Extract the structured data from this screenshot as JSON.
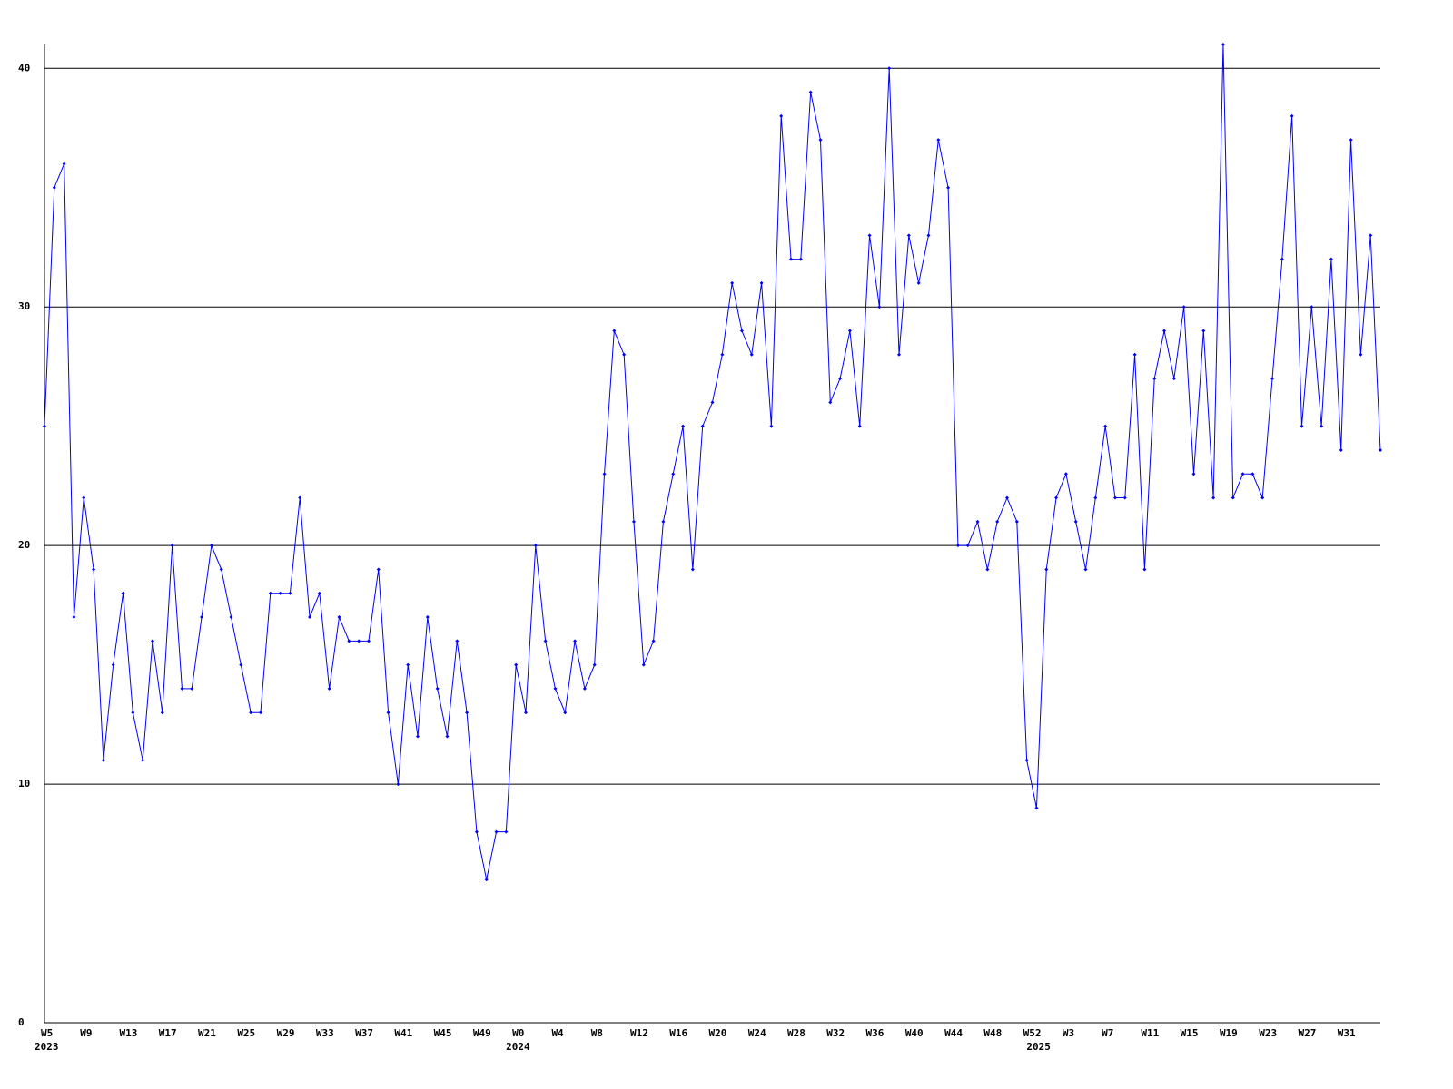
{
  "chart_data": {
    "type": "line",
    "categories": [
      "W5",
      null,
      null,
      null,
      "W9",
      null,
      null,
      null,
      "W13",
      null,
      null,
      null,
      "W17",
      null,
      null,
      null,
      "W21",
      null,
      null,
      null,
      "W25",
      null,
      null,
      null,
      "W29",
      null,
      null,
      null,
      "W33",
      null,
      null,
      null,
      "W37",
      null,
      null,
      null,
      "W41",
      null,
      null,
      null,
      "W45",
      null,
      null,
      null,
      "W49",
      null,
      null,
      null,
      "W0",
      null,
      null,
      null,
      "W4",
      null,
      null,
      null,
      "W8",
      null,
      null,
      null,
      "W12",
      null,
      null,
      null,
      "W16",
      null,
      null,
      null,
      "W20",
      null,
      null,
      null,
      "W24",
      null,
      null,
      null,
      "W28",
      null,
      null,
      null,
      "W32",
      null,
      null,
      null,
      "W36",
      null,
      null,
      null,
      "W40",
      null,
      null,
      null,
      "W44",
      null,
      null,
      null,
      "W48",
      null,
      null,
      null,
      "W52",
      null,
      null,
      null,
      "W3",
      null,
      null,
      null,
      "W7",
      null,
      null,
      null,
      "W11",
      null,
      null,
      null,
      "W15",
      null,
      null,
      null,
      "W19",
      null,
      null,
      null,
      "W23",
      null,
      null,
      null,
      "W27",
      null,
      null,
      null,
      "W31",
      null,
      null,
      null,
      null
    ],
    "year_labels": [
      {
        "label": "2023",
        "at": 0
      },
      {
        "label": "2024",
        "at": 48
      },
      {
        "label": "2025",
        "at": 101
      }
    ],
    "series": [
      {
        "color": "#0000ff",
        "values": [
          25,
          35,
          36,
          17,
          22,
          19,
          11,
          15,
          18,
          13,
          11,
          16,
          13,
          20,
          14,
          14,
          17,
          20,
          19,
          17,
          15,
          13,
          13,
          18,
          18,
          18,
          22,
          17,
          18,
          14,
          17,
          16,
          16,
          16,
          19,
          13,
          10,
          15,
          12,
          17,
          14,
          12,
          16,
          13,
          8,
          6,
          8,
          8,
          15,
          13,
          20,
          16,
          14,
          13,
          16,
          14,
          15,
          23,
          29,
          28,
          21,
          15,
          16,
          21,
          23,
          25,
          19,
          25,
          26,
          28,
          31,
          29,
          28,
          31,
          25,
          38,
          32,
          32,
          39,
          37,
          26,
          27,
          29,
          25,
          33,
          30,
          40,
          28,
          33,
          31,
          33,
          37,
          35,
          20,
          20,
          21,
          19,
          21,
          22,
          21,
          11,
          9,
          19,
          22,
          23,
          21,
          19,
          22,
          25,
          22,
          22,
          28,
          19,
          27,
          29,
          27,
          30,
          23,
          29,
          22,
          41,
          22,
          23,
          23,
          22,
          27,
          32,
          38,
          25,
          30,
          25,
          32,
          24,
          37,
          28,
          33,
          24
        ]
      }
    ],
    "ylim": [
      0,
      41
    ],
    "yticks": [
      0,
      10,
      20,
      30,
      40
    ],
    "grid": true
  }
}
